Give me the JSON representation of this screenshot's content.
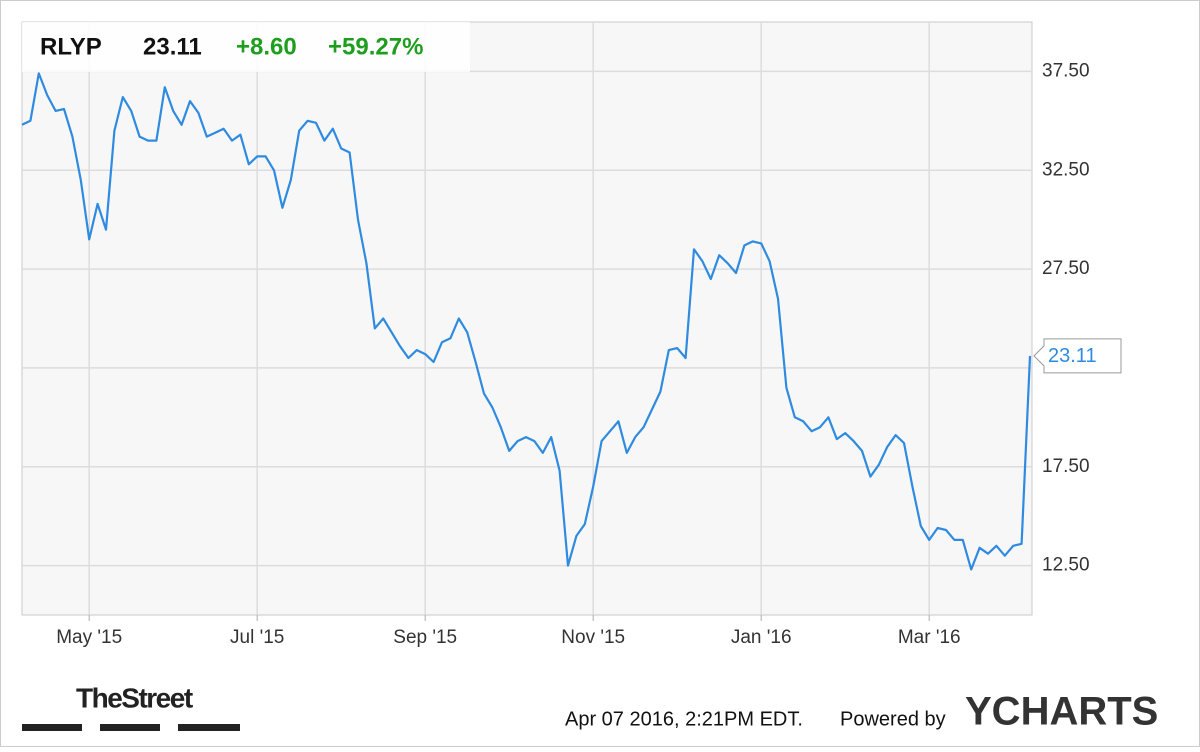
{
  "chart_data": {
    "type": "line",
    "ticker": "RLYP",
    "change": "+8.60",
    "change_percent": "+59.27%",
    "categories": [
      null,
      null,
      null,
      null,
      null,
      null,
      null,
      null,
      "May '15",
      null,
      null,
      null,
      null,
      null,
      null,
      null,
      null,
      null,
      null,
      null,
      null,
      null,
      null,
      null,
      null,
      null,
      null,
      null,
      "Jul '15",
      null,
      null,
      null,
      null,
      null,
      null,
      null,
      null,
      null,
      null,
      null,
      null,
      null,
      null,
      null,
      null,
      null,
      null,
      null,
      "Sep '15",
      null,
      null,
      null,
      null,
      null,
      null,
      null,
      null,
      null,
      null,
      null,
      null,
      null,
      null,
      null,
      null,
      null,
      null,
      null,
      "Nov '15",
      null,
      null,
      null,
      null,
      null,
      null,
      null,
      null,
      null,
      null,
      null,
      null,
      null,
      null,
      null,
      null,
      null,
      null,
      null,
      "Jan '16",
      null,
      null,
      null,
      null,
      null,
      null,
      null,
      null,
      null,
      null,
      null,
      null,
      null,
      null,
      null,
      null,
      null,
      null,
      null,
      "Mar '16",
      null,
      null,
      null,
      null,
      null,
      null,
      null,
      null,
      null,
      null,
      null,
      null
    ],
    "series": [
      {
        "color": "#2f8be0",
        "values": [
          34.8,
          35.0,
          37.4,
          36.3,
          35.5,
          35.6,
          34.2,
          32.0,
          29.0,
          30.8,
          29.5,
          34.5,
          36.2,
          35.5,
          34.2,
          34.0,
          34.0,
          36.7,
          35.5,
          34.8,
          36.0,
          35.4,
          34.2,
          34.4,
          34.6,
          34.0,
          34.3,
          32.8,
          33.2,
          33.2,
          32.5,
          30.6,
          32.0,
          34.5,
          35.0,
          34.9,
          34.0,
          34.6,
          33.6,
          33.4,
          30.0,
          27.8,
          24.5,
          25.0,
          24.3,
          23.6,
          23.0,
          23.4,
          23.2,
          22.8,
          23.8,
          24.0,
          25.0,
          24.3,
          22.8,
          21.2,
          20.5,
          19.5,
          18.3,
          18.8,
          19.0,
          18.8,
          18.2,
          19.0,
          17.3,
          12.5,
          14.0,
          14.6,
          16.5,
          18.8,
          19.3,
          19.8,
          18.2,
          19.0,
          19.5,
          20.4,
          21.3,
          23.4,
          23.5,
          23.0,
          28.5,
          27.9,
          27.0,
          28.2,
          27.8,
          27.3,
          28.7,
          28.9,
          28.8,
          27.9,
          26.0,
          21.5,
          20.0,
          19.8,
          19.3,
          19.5,
          20.0,
          18.9,
          19.2,
          18.8,
          18.3,
          17.0,
          17.6,
          18.5,
          19.1,
          18.7,
          16.5,
          14.5,
          13.8,
          14.4,
          14.3,
          13.8,
          13.8,
          12.3,
          13.4,
          13.1,
          13.5,
          13.0,
          13.5,
          13.6,
          23.11
        ]
      }
    ],
    "ylim": [
      10,
      40
    ],
    "yticks": [
      {
        "value": 12.5,
        "label": "12.50"
      },
      {
        "value": 17.5,
        "label": "17.50"
      },
      {
        "value": 22.5,
        "label": null
      },
      {
        "value": 27.5,
        "label": "27.50"
      },
      {
        "value": 32.5,
        "label": "32.50"
      },
      {
        "value": 37.5,
        "label": "37.50"
      }
    ],
    "grid": true,
    "change_color": "#1e9e1e"
  },
  "footer": {
    "source": "TheStreet",
    "timestamp": "Apr 07 2016, 2:21PM EDT.",
    "powered": "Powered by",
    "brand": "YCHARTS"
  }
}
